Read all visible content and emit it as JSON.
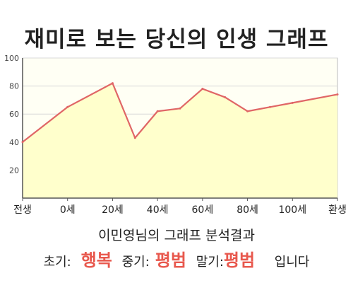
{
  "title": "재미로 보는 당신의 인생 그래프",
  "subtitle": "이민영님의 그래프 분석결과",
  "summary": {
    "early_label": "초기:",
    "early_value": "행복",
    "middle_label": "중기:",
    "middle_value": "평범",
    "late_label": "말기:",
    "late_value": "평범",
    "ending": "입니다"
  },
  "colors": {
    "line": "#e06666",
    "area": "#ffffcc",
    "accent": "#e8584d",
    "grid": "#d8d8d8"
  },
  "chart_data": {
    "type": "area",
    "title": "재미로 보는 당신의 인생 그래프",
    "xlabel": "",
    "ylabel": "",
    "x_ticks": [
      "전생",
      "0세",
      "20세",
      "40세",
      "60세",
      "80세",
      "100세",
      "환생"
    ],
    "x": [
      -20,
      0,
      20,
      30,
      40,
      50,
      60,
      70,
      80,
      90,
      100,
      120
    ],
    "y": [
      40,
      65,
      82,
      43,
      62,
      64,
      78,
      72,
      62,
      65,
      68,
      74
    ],
    "ylim": [
      0,
      100
    ],
    "xlim": [
      -20,
      120
    ],
    "y_ticks": [
      20,
      40,
      60,
      80,
      100
    ],
    "grid": true,
    "legend": "none"
  }
}
